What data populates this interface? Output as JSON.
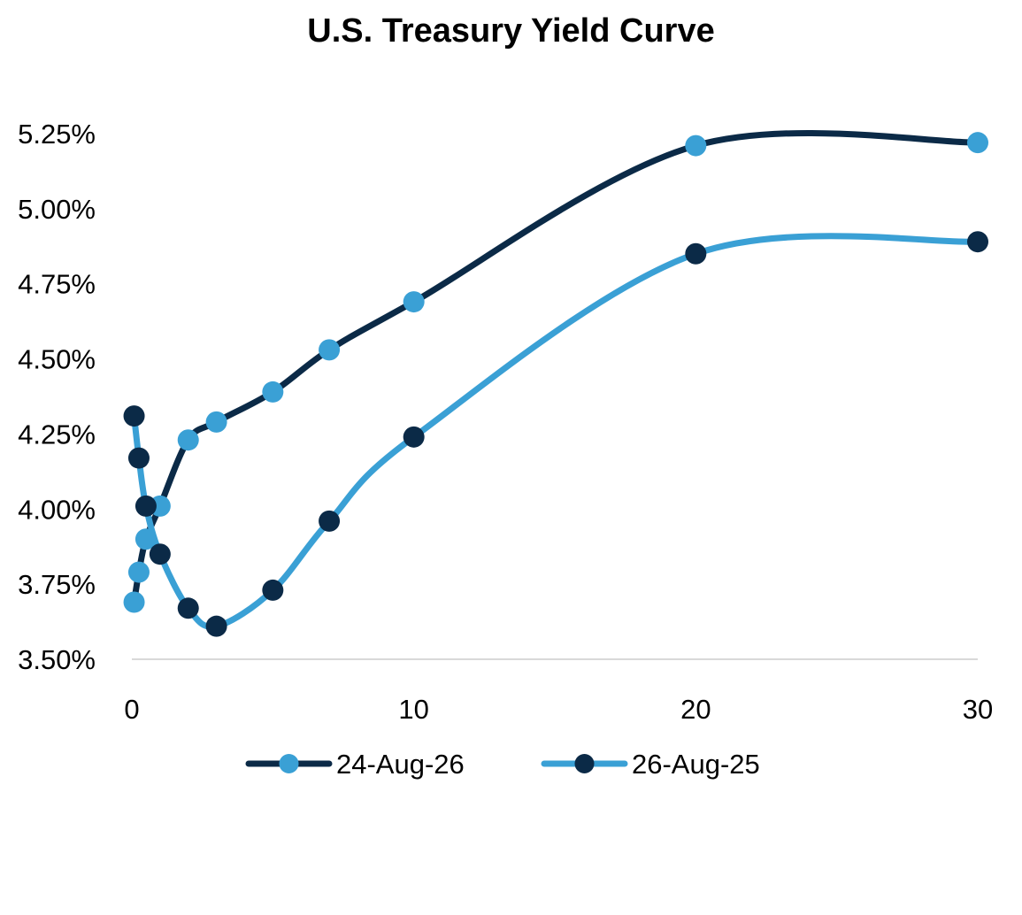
{
  "chart_data": {
    "type": "line",
    "title": "U.S. Treasury Yield Curve",
    "xlabel": "",
    "ylabel": "",
    "xlim": [
      0,
      30
    ],
    "ylim": [
      3.5,
      5.25
    ],
    "x_ticks": [
      "0",
      "10",
      "20",
      "30"
    ],
    "y_ticks": [
      "3.50%",
      "3.75%",
      "4.00%",
      "4.25%",
      "4.50%",
      "4.75%",
      "5.00%",
      "5.25%"
    ],
    "grid": false,
    "legend_position": "bottom",
    "series": [
      {
        "name": "24-Aug-26",
        "line_color": "#0b2a47",
        "marker_color": "#3aa0d5",
        "x": [
          0.08,
          0.25,
          0.5,
          1,
          2,
          3,
          5,
          7,
          10,
          20,
          30
        ],
        "y": [
          3.69,
          3.79,
          3.9,
          4.01,
          4.23,
          4.29,
          4.39,
          4.53,
          4.69,
          5.21,
          5.22
        ]
      },
      {
        "name": "26-Aug-25",
        "line_color": "#3aa0d5",
        "marker_color": "#0b2a47",
        "x": [
          0.08,
          0.25,
          0.5,
          1,
          2,
          3,
          5,
          7,
          10,
          20,
          30
        ],
        "y": [
          4.31,
          4.17,
          4.01,
          3.85,
          3.67,
          3.61,
          3.73,
          3.96,
          4.24,
          4.85,
          4.89
        ]
      }
    ]
  }
}
